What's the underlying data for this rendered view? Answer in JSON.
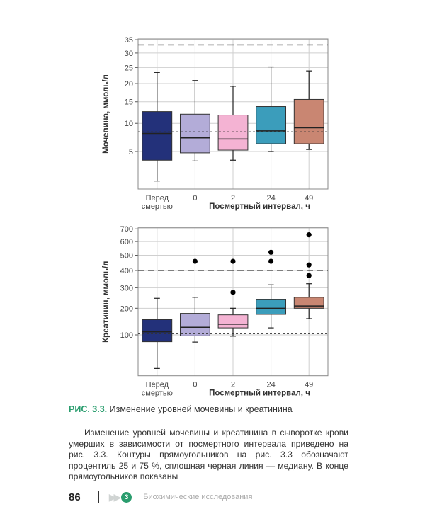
{
  "chart_data": [
    {
      "type": "box",
      "scale": "sqrt",
      "ylabel": "Мочевина, ммоль/л",
      "xlabel": "Посмертный интервал, ч",
      "ylim": [
        1,
        35.3
      ],
      "yticks": [
        5,
        10,
        15,
        20,
        25,
        30,
        35
      ],
      "categories": [
        "Перед смертью",
        "0",
        "2",
        "24",
        "49"
      ],
      "colors": [
        "#23317a",
        "#b3acd8",
        "#f4b3d3",
        "#3b9dbb",
        "#c98672"
      ],
      "boxes": [
        {
          "whisker_low": 1.6,
          "q1": 3.8,
          "median": 8.0,
          "q3": 12.6,
          "whisker_high": 23.4,
          "outliers": []
        },
        {
          "whisker_low": 3.7,
          "q1": 4.8,
          "median": 7.2,
          "q3": 12.0,
          "whisker_high": 20.9,
          "outliers": []
        },
        {
          "whisker_low": 3.8,
          "q1": 5.2,
          "median": 7.0,
          "q3": 11.8,
          "whisker_high": 19.2,
          "outliers": []
        },
        {
          "whisker_low": 5.0,
          "q1": 6.2,
          "median": 8.5,
          "q3": 13.8,
          "whisker_high": 25.2,
          "outliers": []
        },
        {
          "whisker_low": 5.3,
          "q1": 6.2,
          "median": 9.1,
          "q3": 15.6,
          "whisker_high": 23.9,
          "outliers": []
        }
      ],
      "reference_lines": [
        {
          "value": 33.0,
          "style": "long-dash"
        },
        {
          "value": 8.3,
          "style": "short-dash"
        }
      ],
      "grid": true
    },
    {
      "type": "box",
      "scale": "sqrt",
      "ylabel": "Креатинин, ммоль/л",
      "xlabel": "Посмертный интервал, ч",
      "ylim": [
        13.4,
        709
      ],
      "yticks": [
        100,
        200,
        300,
        400,
        500,
        600,
        700
      ],
      "categories": [
        "Перед смертью",
        "0",
        "2",
        "24",
        "49"
      ],
      "colors": [
        "#23317a",
        "#b3acd8",
        "#f4b3d3",
        "#3b9dbb",
        "#c98672"
      ],
      "boxes": [
        {
          "whisker_low": 23,
          "q1": 80,
          "median": 110,
          "q3": 153,
          "whisker_high": 246,
          "outliers": []
        },
        {
          "whisker_low": 79,
          "q1": 97,
          "median": 125,
          "q3": 178,
          "whisker_high": 251,
          "outliers": [
            459
          ]
        },
        {
          "whisker_low": 96,
          "q1": 123,
          "median": 136,
          "q3": 172,
          "whisker_high": 200,
          "outliers": [
            459,
            276
          ]
        },
        {
          "whisker_low": 123,
          "q1": 174,
          "median": 200,
          "q3": 239,
          "whisker_high": 316,
          "outliers": [
            521,
            459
          ]
        },
        {
          "whisker_low": 157,
          "q1": 200,
          "median": 210,
          "q3": 251,
          "whisker_high": 322,
          "outliers": [
            652,
            435,
            369
          ]
        }
      ],
      "reference_lines": [
        {
          "value": 400,
          "style": "long-dash"
        },
        {
          "value": 104,
          "style": "short-dash"
        }
      ],
      "grid": true
    }
  ],
  "caption": {
    "label": "РИС. 3.3.",
    "text": "Изменение уровней мочевины и креатинина"
  },
  "paragraph": "Изменение уровней мочевины и креатинина в сыворотке крови умерших в зависимости от посмертного интервала приведено на рис. 3.3. Контуры прямоугольников на рис. 3.3 обозначают процентиль 25 и 75 %, сплошная черная линия — медиану. В конце прямоугольников показаны",
  "footer": {
    "page_number": "86",
    "chapter_number": "3",
    "section_title": "Биохимические исследования"
  }
}
